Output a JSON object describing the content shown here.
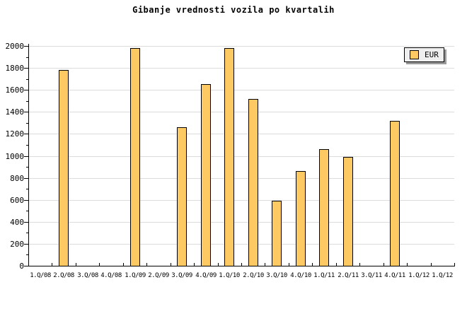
{
  "title": "Gibanje vrednosti vozila po kvartalih",
  "legend": {
    "label": "EUR"
  },
  "colors": {
    "bar_fill": "#FCC963",
    "bar_border": "#000000",
    "grid": "#DCDCDC",
    "axis": "#000000",
    "legend_bg": "#EFEFEF",
    "legend_shadow": "#999999",
    "background": "#FFFFFF"
  },
  "chart_data": {
    "type": "bar",
    "title": "Gibanje vrednosti vozila po kvartalih",
    "categories": [
      "1.Q/08",
      "2.Q/08",
      "3.Q/08",
      "4.Q/08",
      "1.Q/09",
      "2.Q/09",
      "3.Q/09",
      "4.Q/09",
      "1.Q/10",
      "2.Q/10",
      "3.Q/10",
      "4.Q/10",
      "1.Q/11",
      "2.Q/11",
      "3.Q/11",
      "4.Q/11",
      "1.Q/12",
      "1.Q/12"
    ],
    "series": [
      {
        "name": "EUR",
        "color": "#FCC963",
        "values": [
          null,
          1780,
          null,
          null,
          1980,
          null,
          1260,
          1655,
          1980,
          1520,
          590,
          860,
          1060,
          990,
          null,
          1320,
          null,
          null
        ]
      }
    ],
    "xlabel": "",
    "ylabel": "",
    "ylim": [
      0,
      2000
    ],
    "ytick_major": 200,
    "ytick_minor": 100,
    "yticks": [
      0,
      200,
      400,
      600,
      800,
      1000,
      1200,
      1400,
      1600,
      1800,
      2000
    ],
    "grid": "horizontal-major",
    "legend_position": "top-right"
  }
}
